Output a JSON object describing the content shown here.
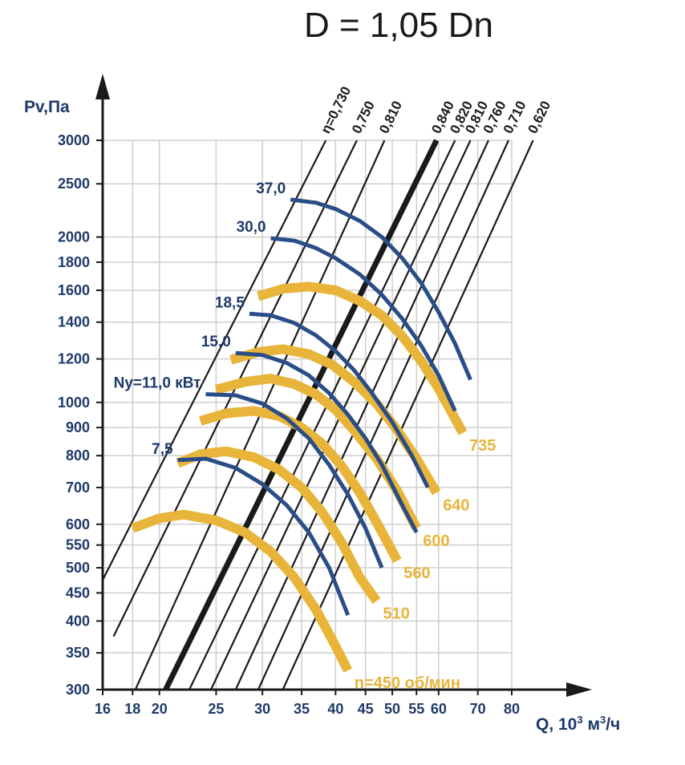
{
  "chart_data": {
    "type": "line",
    "title": "D = 1,05 Dn",
    "xlabel": "Q, 10³ м³/ч",
    "ylabel": "Pv,Па",
    "x_scale": "log",
    "y_scale": "log",
    "xlim": [
      16,
      80
    ],
    "ylim": [
      300,
      3000
    ],
    "x_ticks": [
      16,
      18,
      20,
      25,
      30,
      35,
      40,
      45,
      50,
      55,
      60,
      70,
      80
    ],
    "x_tick_labels": [
      "16",
      "18",
      "20",
      "25",
      "30",
      "35",
      "40",
      "45",
      "50",
      "55",
      "60",
      "70",
      "80"
    ],
    "y_ticks": [
      300,
      350,
      400,
      450,
      500,
      550,
      600,
      700,
      800,
      900,
      1000,
      1200,
      1400,
      1600,
      1800,
      2000,
      2500,
      3000
    ],
    "y_tick_labels": [
      "300",
      "350",
      "400",
      "450",
      "500",
      "550",
      "600",
      "700",
      "800",
      "900",
      "1000",
      "1200",
      "1400",
      "1600",
      "1800",
      "2000",
      "2500",
      "3000"
    ],
    "grid": true,
    "efficiency_lines": [
      {
        "label": "η=0,730",
        "q": [
          16,
          38.5
        ],
        "p": [
          475,
          3000
        ],
        "bold": false
      },
      {
        "label": "0,750",
        "q": [
          16.7,
          43.5
        ],
        "p": [
          375,
          3000
        ],
        "bold": false
      },
      {
        "label": "0,810",
        "q": [
          18.2,
          48.5
        ],
        "p": [
          300,
          3000
        ],
        "bold": false
      },
      {
        "label": "0,840",
        "q": [
          20.5,
          59.5
        ],
        "p": [
          300,
          3000
        ],
        "bold": true
      },
      {
        "label": "0,820",
        "q": [
          22.5,
          64
        ],
        "p": [
          300,
          3000
        ],
        "bold": false
      },
      {
        "label": "0,810",
        "q": [
          24.5,
          68
        ],
        "p": [
          300,
          3000
        ],
        "bold": false
      },
      {
        "label": "0,760",
        "q": [
          27,
          73
        ],
        "p": [
          300,
          3000
        ],
        "bold": false
      },
      {
        "label": "0,710",
        "q": [
          29.5,
          79
        ],
        "p": [
          300,
          3000
        ],
        "bold": false
      },
      {
        "label": "0,620",
        "q": [
          32.5,
          87
        ],
        "p": [
          300,
          3000
        ],
        "bold": false
      }
    ],
    "speed_curves": [
      {
        "label": "n=450 об/мин",
        "q": [
          18,
          20,
          22,
          25,
          28,
          31,
          34,
          37,
          40,
          42
        ],
        "p": [
          590,
          615,
          625,
          610,
          580,
          535,
          480,
          420,
          360,
          325
        ]
      },
      {
        "label": "510",
        "q": [
          21.5,
          23.5,
          26,
          29,
          32,
          35,
          38,
          41,
          44,
          47
        ],
        "p": [
          775,
          805,
          815,
          795,
          755,
          700,
          630,
          555,
          480,
          435
        ]
      },
      {
        "label": "560",
        "q": [
          23.5,
          26,
          29,
          32,
          35,
          38,
          41,
          44,
          47,
          51
        ],
        "p": [
          925,
          955,
          965,
          945,
          900,
          840,
          765,
          685,
          605,
          515
        ]
      },
      {
        "label": "600",
        "q": [
          25,
          28,
          31,
          34,
          37,
          40,
          43,
          47,
          51,
          55
        ],
        "p": [
          1055,
          1090,
          1105,
          1080,
          1035,
          970,
          890,
          790,
          690,
          590
        ]
      },
      {
        "label": "640",
        "q": [
          26.5,
          29.5,
          32.5,
          36,
          39.5,
          43,
          47,
          51,
          55,
          59.5
        ],
        "p": [
          1195,
          1235,
          1250,
          1225,
          1170,
          1090,
          995,
          890,
          790,
          685
        ]
      },
      {
        "label": "735",
        "q": [
          29.5,
          32.5,
          36,
          40,
          44,
          48,
          52,
          56,
          60,
          66
        ],
        "p": [
          1560,
          1610,
          1625,
          1600,
          1530,
          1440,
          1320,
          1190,
          1060,
          880
        ]
      }
    ],
    "power_curves": [
      {
        "label": "7,5",
        "q": [
          21.5,
          24,
          27,
          30,
          33,
          36,
          39,
          42
        ],
        "p": [
          785,
          790,
          760,
          710,
          650,
          580,
          500,
          410
        ]
      },
      {
        "label": "Ny=11,0 кВт",
        "q": [
          24,
          27,
          30,
          33,
          36,
          39,
          42,
          45,
          48
        ],
        "p": [
          1035,
          1030,
          995,
          935,
          860,
          770,
          680,
          590,
          500
        ]
      },
      {
        "label": "15,0",
        "q": [
          27,
          30,
          33,
          36,
          39,
          42,
          45,
          48,
          52,
          55
        ],
        "p": [
          1230,
          1220,
          1180,
          1120,
          1040,
          950,
          860,
          770,
          650,
          580
        ]
      },
      {
        "label": "18,5",
        "q": [
          28.5,
          31,
          34,
          37,
          40,
          43,
          46,
          50,
          54,
          57.5
        ],
        "p": [
          1450,
          1440,
          1395,
          1325,
          1240,
          1145,
          1045,
          920,
          800,
          700
        ]
      },
      {
        "label": "30,0",
        "q": [
          31,
          34,
          37,
          40,
          44,
          48,
          52,
          56,
          60,
          64
        ],
        "p": [
          1990,
          1970,
          1910,
          1830,
          1710,
          1570,
          1420,
          1270,
          1120,
          965
        ]
      },
      {
        "label": "37,0",
        "q": [
          33.5,
          37,
          40,
          44,
          48,
          52,
          56,
          60,
          64,
          68
        ],
        "p": [
          2340,
          2310,
          2250,
          2140,
          2000,
          1830,
          1650,
          1460,
          1280,
          1100
        ]
      }
    ],
    "colors": {
      "speed_curves": "#e8b53a",
      "power_curves": "#294d87",
      "efficiency_lines": "#1a1a1a",
      "grid": "#cfcfcf",
      "tick_text": "#1f3a68"
    }
  }
}
